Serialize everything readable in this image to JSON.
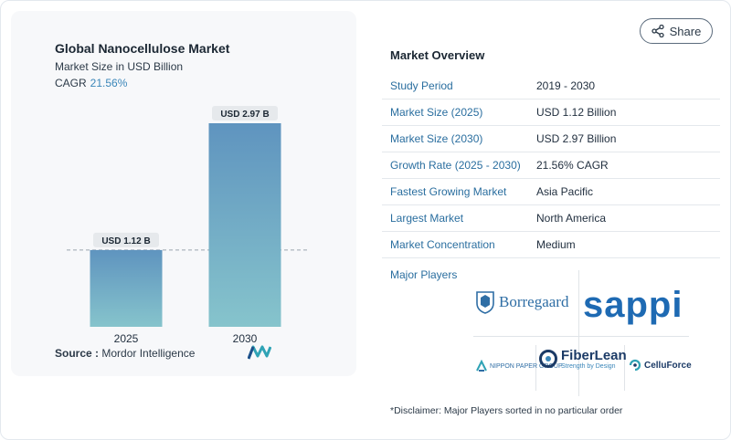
{
  "chart_data": {
    "type": "bar",
    "title": "Global Nanocellulose Market",
    "subtitle": "Market Size in USD Billion",
    "cagr_label": "CAGR",
    "cagr_value": "21.56%",
    "categories": [
      "2025",
      "2030"
    ],
    "values": [
      1.12,
      2.97
    ],
    "data_labels": [
      "USD 1.12 B",
      "USD 2.97 B"
    ],
    "ylim": [
      0,
      2.97
    ],
    "grid": false,
    "reference_line": 1.12,
    "colors": {
      "bar_top": "#5f94bf",
      "bar_bottom": "#86c4cc",
      "label_bg": "#e6e9ec"
    }
  },
  "source": {
    "label": "Source :",
    "value": "Mordor Intelligence"
  },
  "share": {
    "label": "Share",
    "icon": "share-icon"
  },
  "overview": {
    "title": "Market Overview",
    "rows": [
      {
        "label": "Study Period",
        "value": "2019 - 2030"
      },
      {
        "label": "Market Size (2025)",
        "value": "USD 1.12 Billion"
      },
      {
        "label": "Market Size (2030)",
        "value": "USD 2.97 Billion"
      },
      {
        "label": "Growth Rate (2025 - 2030)",
        "value": "21.56% CAGR"
      },
      {
        "label": "Fastest Growing Market",
        "value": "Asia Pacific"
      },
      {
        "label": "Largest Market",
        "value": "North America"
      },
      {
        "label": "Market Concentration",
        "value": "Medium"
      }
    ]
  },
  "players": {
    "title": "Major Players",
    "borregaard": "Borregaard",
    "sappi": "sappi",
    "nippon": "NIPPON PAPER GROUP",
    "fiberlean_name": "FiberLean",
    "fiberlean_tag": "Strength by Design",
    "celluforce": "CelluForce"
  },
  "disclaimer": "*Disclaimer: Major Players sorted in no particular order"
}
